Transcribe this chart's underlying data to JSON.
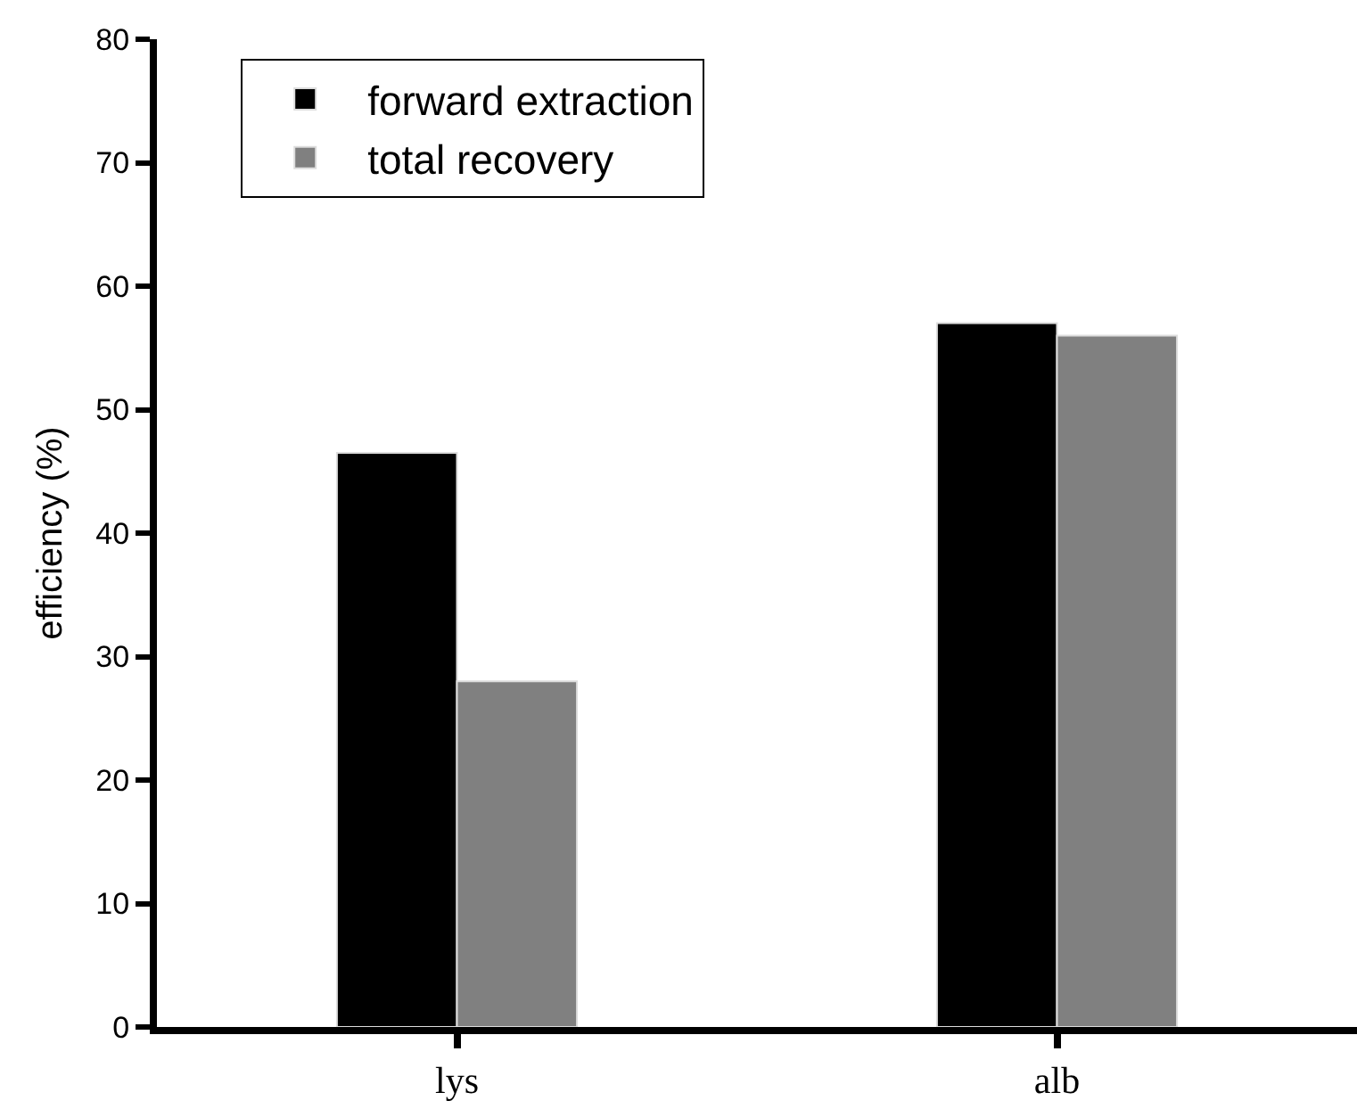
{
  "chart_data": {
    "type": "bar",
    "ylabel": "efficiency (%)",
    "categories": [
      "lys",
      "alb"
    ],
    "series": [
      {
        "name": "forward extraction",
        "color": "#000000",
        "values": [
          46.5,
          57
        ]
      },
      {
        "name": "total recovery",
        "color": "#808080",
        "values": [
          28,
          56
        ]
      }
    ],
    "ylim": [
      0,
      80
    ],
    "yticks": [
      0,
      10,
      20,
      30,
      40,
      50,
      60,
      70,
      80
    ],
    "grid": false,
    "legend": "top left"
  }
}
